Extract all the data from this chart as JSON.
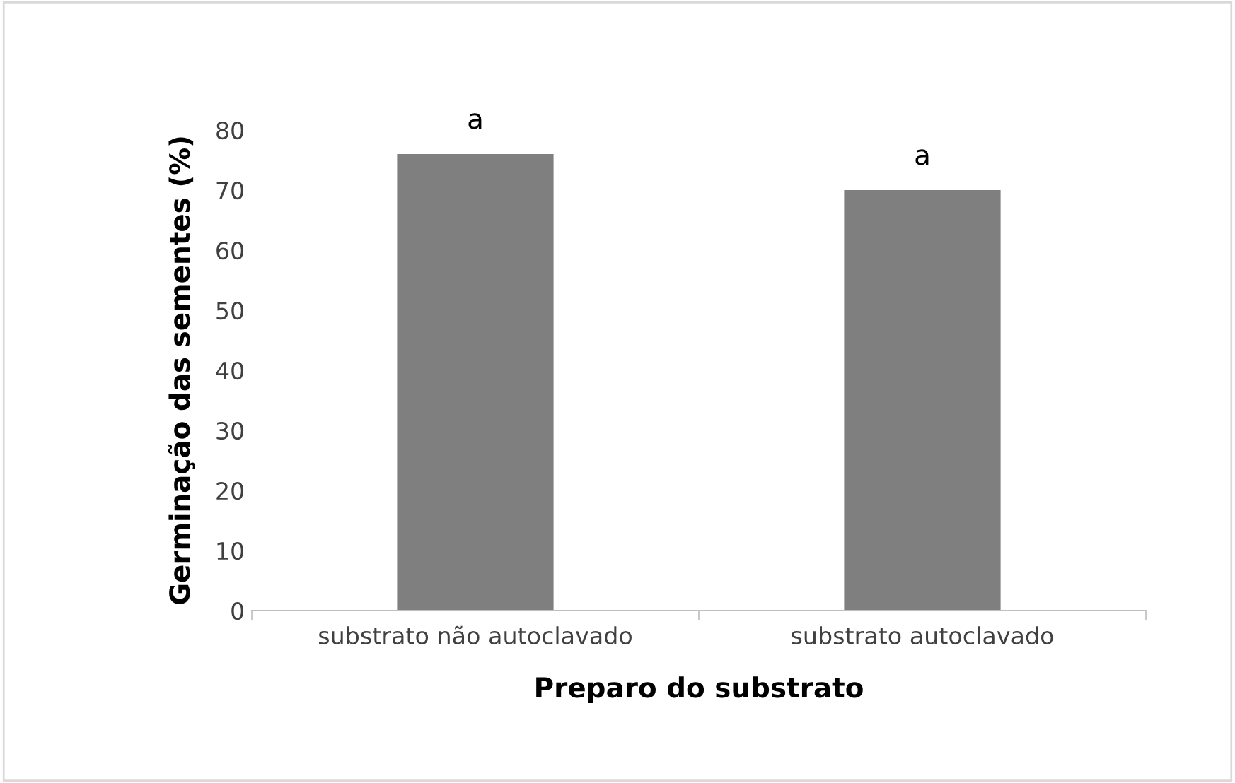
{
  "chart_data": {
    "type": "bar",
    "xlabel": "Preparo do substrato",
    "ylabel": "Germinação das sementes (%)",
    "categories": [
      "substrato não autoclavado",
      "substrato autoclavado"
    ],
    "values": [
      76,
      70
    ],
    "color": "#7f7f7f",
    "ylim": [
      0,
      80
    ],
    "yticks": [
      0,
      10,
      20,
      30,
      40,
      50,
      60,
      70,
      80
    ],
    "grid": false,
    "annotations": [
      {
        "text": "a",
        "x": "substrato não autoclavado",
        "y": 76
      },
      {
        "text": "a",
        "x": "substrato autoclavado",
        "y": 70
      }
    ]
  }
}
